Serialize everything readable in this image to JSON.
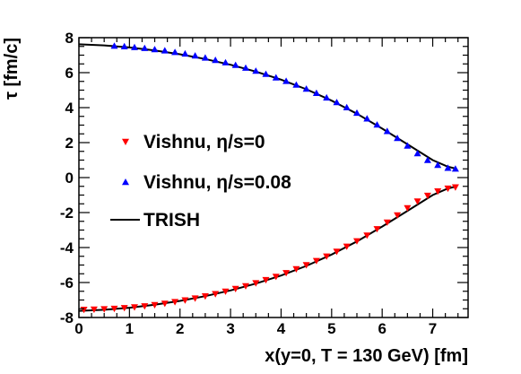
{
  "chart_data": {
    "type": "scatter",
    "title": "",
    "xlabel": "x(y=0, T = 130 GeV) [fm]",
    "ylabel": "τ [fm/c]",
    "xlim": [
      0,
      7.7
    ],
    "ylim": [
      -8,
      8
    ],
    "x_ticks": [
      "0",
      "1",
      "2",
      "3",
      "4",
      "5",
      "6",
      "7"
    ],
    "y_ticks": [
      "-8",
      "-6",
      "-4",
      "-2",
      "0",
      "2",
      "4",
      "6",
      "8"
    ],
    "grid": false,
    "legend_position": "left-middle",
    "series": [
      {
        "name": "Vishnu, η/s=0",
        "marker": "triangle-down",
        "color": "#ff0000",
        "x": [
          0.1,
          0.3,
          0.5,
          0.7,
          0.9,
          1.1,
          1.3,
          1.5,
          1.7,
          1.9,
          2.1,
          2.3,
          2.5,
          2.7,
          2.9,
          3.1,
          3.3,
          3.5,
          3.7,
          3.9,
          4.1,
          4.3,
          4.5,
          4.7,
          4.9,
          5.1,
          5.3,
          5.5,
          5.7,
          5.9,
          6.1,
          6.3,
          6.5,
          6.7,
          6.9,
          7.1,
          7.3,
          7.45
        ],
        "y": [
          -7.55,
          -7.54,
          -7.52,
          -7.49,
          -7.45,
          -7.41,
          -7.35,
          -7.28,
          -7.2,
          -7.11,
          -7.01,
          -6.9,
          -6.78,
          -6.65,
          -6.51,
          -6.36,
          -6.2,
          -6.03,
          -5.85,
          -5.66,
          -5.45,
          -5.23,
          -5.0,
          -4.76,
          -4.5,
          -4.23,
          -3.94,
          -3.63,
          -3.3,
          -2.94,
          -2.56,
          -2.15,
          -1.74,
          -1.36,
          -1.03,
          -0.78,
          -0.62,
          -0.55
        ]
      },
      {
        "name": "Vishnu, η/s=0.08",
        "marker": "triangle-up",
        "color": "#0000ff",
        "x": [
          0.7,
          0.9,
          1.1,
          1.3,
          1.5,
          1.7,
          1.9,
          2.1,
          2.3,
          2.5,
          2.7,
          2.9,
          3.1,
          3.3,
          3.5,
          3.7,
          3.9,
          4.1,
          4.3,
          4.5,
          4.7,
          4.9,
          5.1,
          5.3,
          5.5,
          5.7,
          5.9,
          6.1,
          6.3,
          6.5,
          6.7,
          6.9,
          7.1,
          7.3,
          7.45
        ],
        "y": [
          7.53,
          7.5,
          7.45,
          7.4,
          7.33,
          7.26,
          7.17,
          7.08,
          6.97,
          6.85,
          6.72,
          6.58,
          6.43,
          6.27,
          6.1,
          5.92,
          5.72,
          5.52,
          5.3,
          5.07,
          4.83,
          4.57,
          4.3,
          4.01,
          3.7,
          3.37,
          3.02,
          2.65,
          2.25,
          1.82,
          1.38,
          1.0,
          0.72,
          0.55,
          0.5
        ]
      },
      {
        "name": "TRISH",
        "marker": "line",
        "color": "#000000",
        "x": [
          0,
          0.5,
          1,
          1.5,
          2,
          2.5,
          3,
          3.5,
          4,
          4.5,
          5,
          5.5,
          6,
          6.5,
          7,
          7.3,
          7.45
        ],
        "y_upper": [
          7.62,
          7.56,
          7.44,
          7.27,
          7.05,
          6.78,
          6.45,
          6.06,
          5.6,
          5.05,
          4.4,
          3.65,
          2.8,
          1.9,
          1.0,
          0.62,
          0.52
        ],
        "y_lower": [
          -7.62,
          -7.56,
          -7.44,
          -7.27,
          -7.05,
          -6.78,
          -6.45,
          -6.06,
          -5.6,
          -5.05,
          -4.4,
          -3.65,
          -2.8,
          -1.9,
          -1.0,
          -0.62,
          -0.52
        ]
      }
    ]
  }
}
